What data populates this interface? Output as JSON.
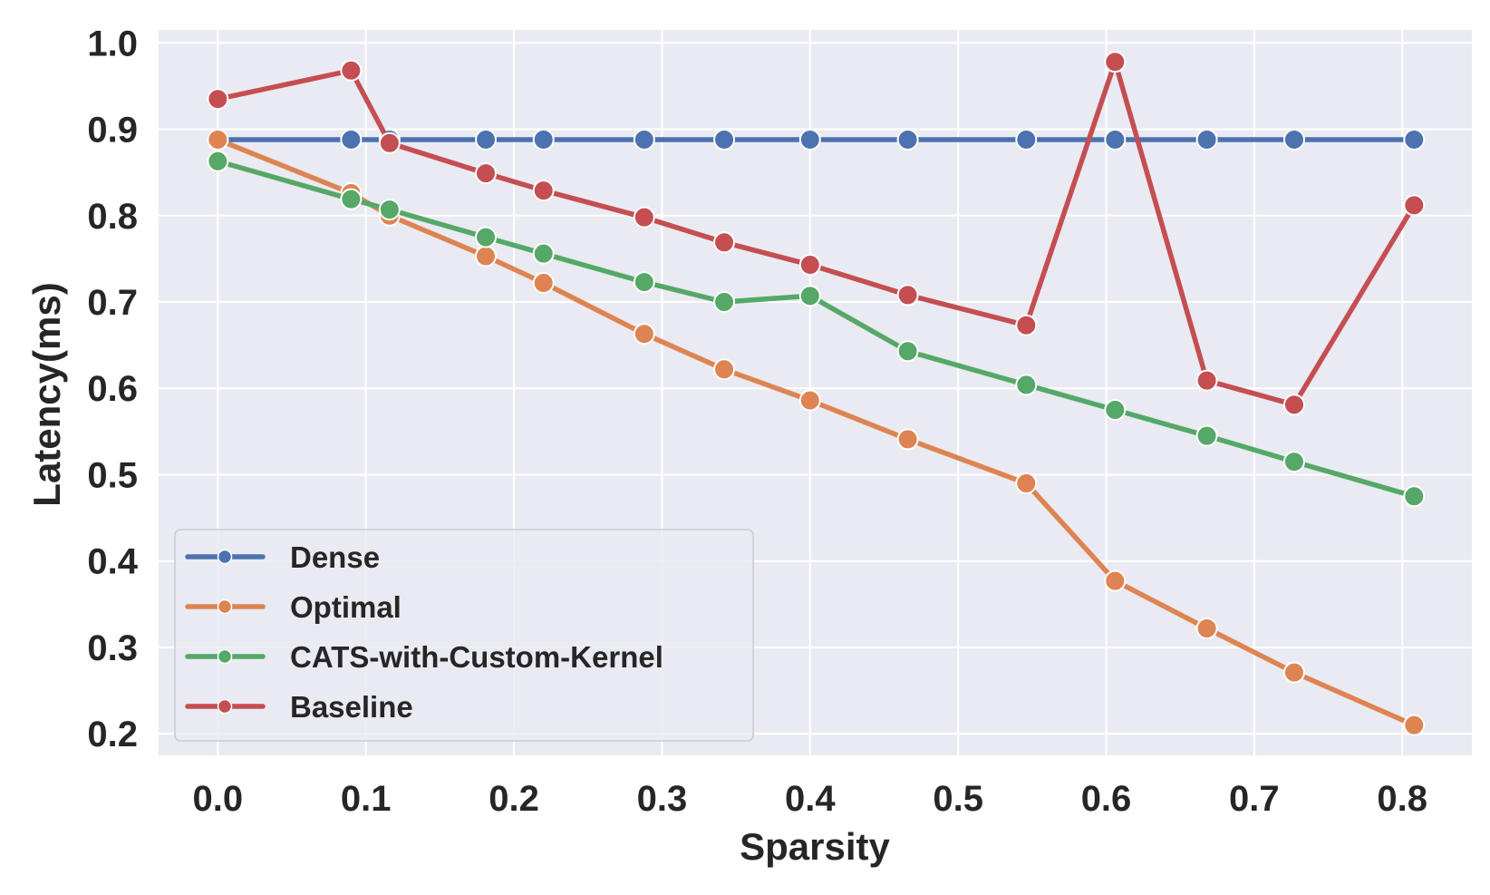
{
  "chart_data": {
    "type": "line",
    "title": "",
    "xlabel": "Sparsity",
    "ylabel": "Latency(ms)",
    "xlim": [
      -0.04,
      0.847
    ],
    "ylim": [
      0.175,
      1.015
    ],
    "xticks": [
      0.0,
      0.1,
      0.2,
      0.3,
      0.4,
      0.5,
      0.6,
      0.7,
      0.8
    ],
    "xtick_labels": [
      "0.0",
      "0.1",
      "0.2",
      "0.3",
      "0.4",
      "0.5",
      "0.6",
      "0.7",
      "0.8"
    ],
    "yticks": [
      0.2,
      0.3,
      0.4,
      0.5,
      0.6,
      0.7,
      0.8,
      0.9,
      1.0
    ],
    "ytick_labels": [
      "0.2",
      "0.3",
      "0.4",
      "0.5",
      "0.6",
      "0.7",
      "0.8",
      "0.9",
      "1.0"
    ],
    "grid": true,
    "legend_position": "lower-left",
    "series": [
      {
        "name": "Dense",
        "color": "#4c72b0",
        "x": [
          0.0,
          0.09,
          0.116,
          0.181,
          0.22,
          0.288,
          0.342,
          0.4,
          0.466,
          0.546,
          0.606,
          0.668,
          0.727,
          0.808
        ],
        "y": [
          0.888,
          0.888,
          0.888,
          0.888,
          0.888,
          0.888,
          0.888,
          0.888,
          0.888,
          0.888,
          0.888,
          0.888,
          0.888,
          0.888
        ]
      },
      {
        "name": "Optimal",
        "color": "#dd8452",
        "x": [
          0.0,
          0.09,
          0.116,
          0.181,
          0.22,
          0.288,
          0.342,
          0.4,
          0.466,
          0.546,
          0.606,
          0.668,
          0.727,
          0.808
        ],
        "y": [
          0.888,
          0.826,
          0.8,
          0.753,
          0.722,
          0.663,
          0.622,
          0.586,
          0.541,
          0.49,
          0.377,
          0.322,
          0.271,
          0.21
        ]
      },
      {
        "name": "CATS-with-Custom-Kernel",
        "color": "#55a868",
        "x": [
          0.0,
          0.09,
          0.116,
          0.181,
          0.22,
          0.288,
          0.342,
          0.4,
          0.466,
          0.546,
          0.606,
          0.668,
          0.727,
          0.808
        ],
        "y": [
          0.863,
          0.819,
          0.807,
          0.775,
          0.756,
          0.723,
          0.7,
          0.707,
          0.643,
          0.604,
          0.575,
          0.545,
          0.515,
          0.475
        ]
      },
      {
        "name": "Baseline",
        "color": "#c44e52",
        "x": [
          0.0,
          0.09,
          0.116,
          0.181,
          0.22,
          0.288,
          0.342,
          0.4,
          0.466,
          0.546,
          0.606,
          0.668,
          0.727,
          0.808
        ],
        "y": [
          0.935,
          0.968,
          0.884,
          0.849,
          0.829,
          0.798,
          0.769,
          0.743,
          0.708,
          0.673,
          0.978,
          0.609,
          0.581,
          0.812
        ]
      }
    ]
  }
}
